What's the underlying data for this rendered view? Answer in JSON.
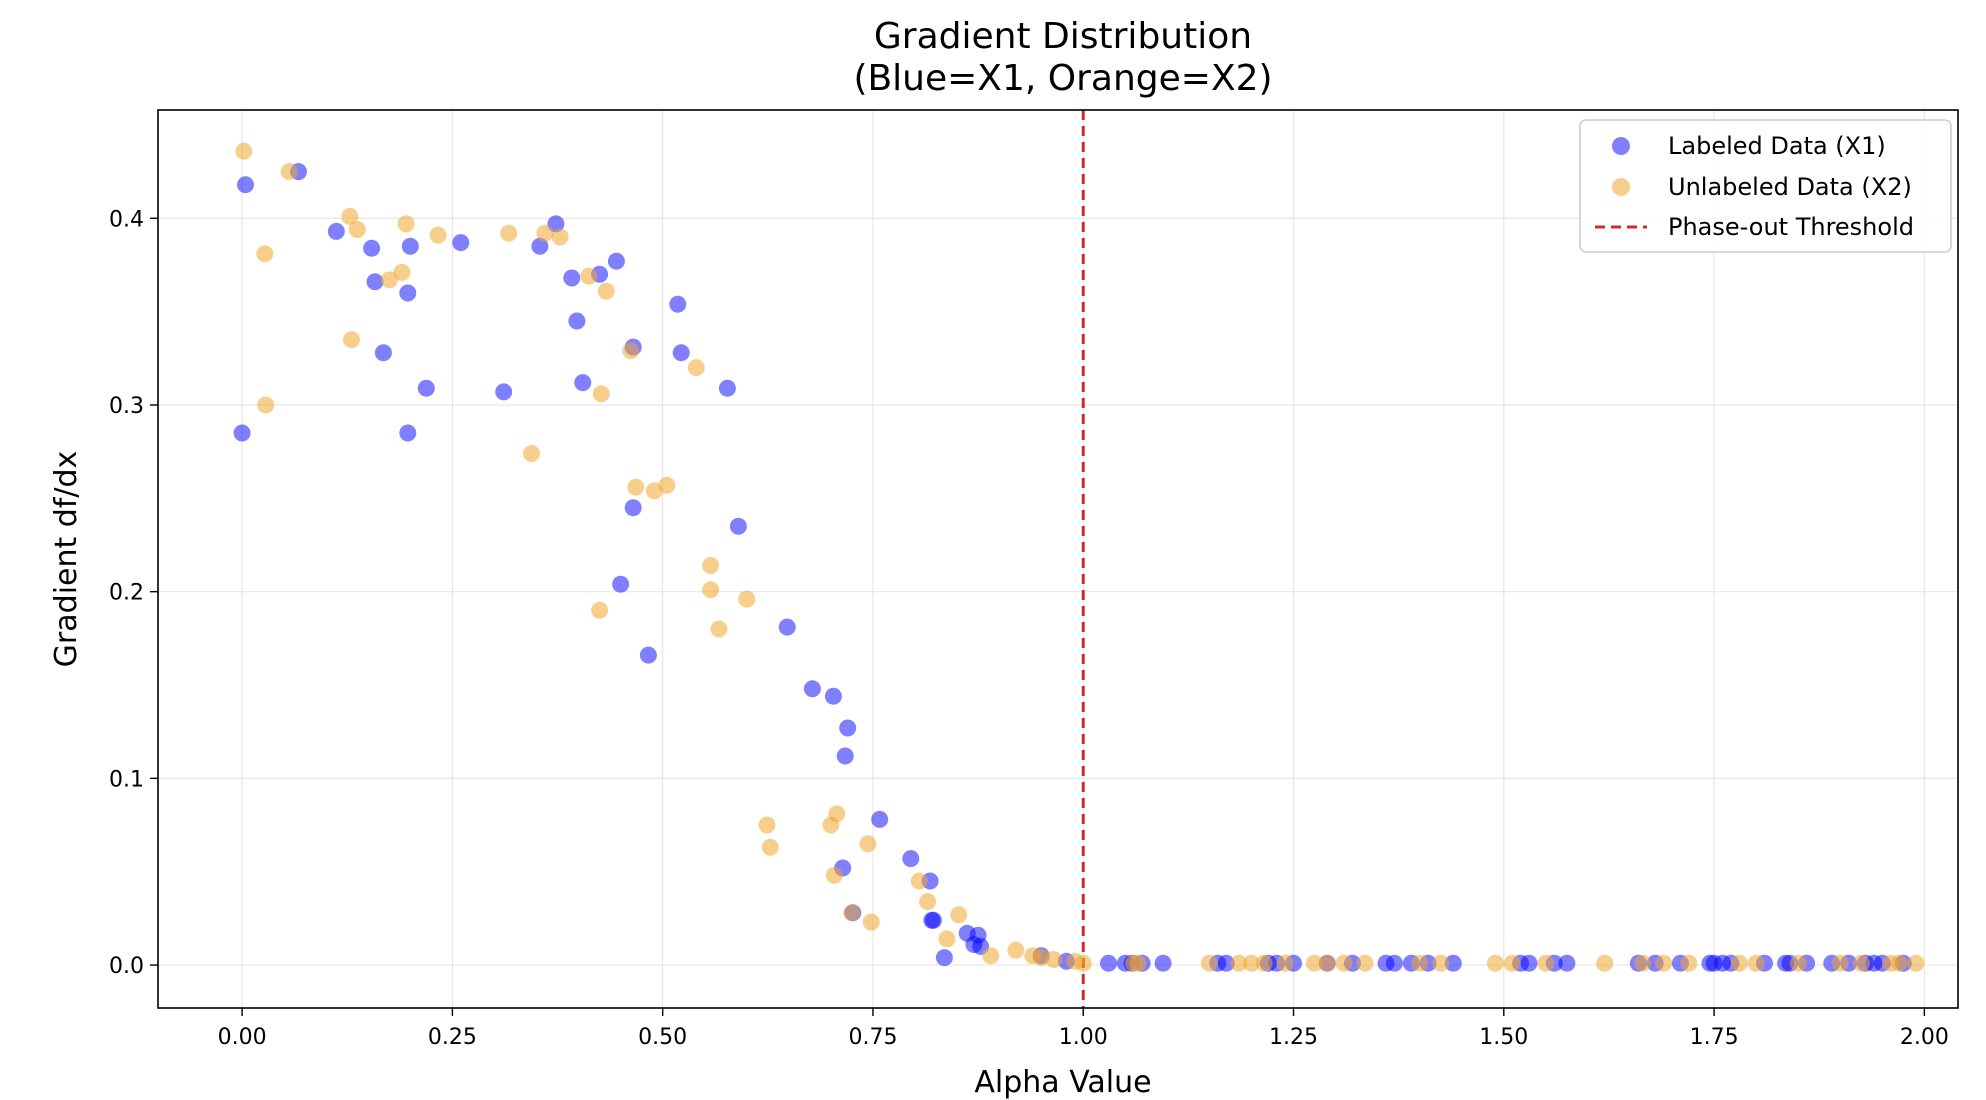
{
  "chart_data": {
    "type": "scatter",
    "title_line1": "Gradient Distribution",
    "title_line2": "(Blue=X1, Orange=X2)",
    "xlabel": "Alpha Value",
    "ylabel": "Gradient df/dx",
    "xlim": [
      -0.1,
      2.04
    ],
    "ylim": [
      -0.023,
      0.458
    ],
    "xticks": [
      0.0,
      0.25,
      0.5,
      0.75,
      1.0,
      1.25,
      1.5,
      1.75,
      2.0
    ],
    "xtick_labels": [
      "0.00",
      "0.25",
      "0.50",
      "0.75",
      "1.00",
      "1.25",
      "1.50",
      "1.75",
      "2.00"
    ],
    "yticks": [
      0.0,
      0.1,
      0.2,
      0.3,
      0.4
    ],
    "ytick_labels": [
      "0.0",
      "0.1",
      "0.2",
      "0.3",
      "0.4"
    ],
    "grid": true,
    "legend_position": "top-right",
    "threshold": {
      "x": 1.0,
      "label": "Phase-out Threshold",
      "color": "#d62728",
      "style": "dashed"
    },
    "series": [
      {
        "name": "Labeled Data (X1)",
        "color": "#0000ff",
        "opacity": 0.5,
        "points": [
          [
            0.0,
            0.285
          ],
          [
            0.004,
            0.418
          ],
          [
            0.067,
            0.425
          ],
          [
            0.112,
            0.393
          ],
          [
            0.154,
            0.384
          ],
          [
            0.158,
            0.366
          ],
          [
            0.168,
            0.328
          ],
          [
            0.197,
            0.285
          ],
          [
            0.197,
            0.36
          ],
          [
            0.2,
            0.385
          ],
          [
            0.219,
            0.309
          ],
          [
            0.26,
            0.387
          ],
          [
            0.311,
            0.307
          ],
          [
            0.354,
            0.385
          ],
          [
            0.373,
            0.397
          ],
          [
            0.392,
            0.368
          ],
          [
            0.398,
            0.345
          ],
          [
            0.405,
            0.312
          ],
          [
            0.425,
            0.37
          ],
          [
            0.445,
            0.377
          ],
          [
            0.45,
            0.204
          ],
          [
            0.465,
            0.331
          ],
          [
            0.465,
            0.245
          ],
          [
            0.483,
            0.166
          ],
          [
            0.518,
            0.354
          ],
          [
            0.522,
            0.328
          ],
          [
            0.577,
            0.309
          ],
          [
            0.59,
            0.235
          ],
          [
            0.648,
            0.181
          ],
          [
            0.678,
            0.148
          ],
          [
            0.703,
            0.144
          ],
          [
            0.714,
            0.052
          ],
          [
            0.717,
            0.112
          ],
          [
            0.72,
            0.127
          ],
          [
            0.726,
            0.028
          ],
          [
            0.758,
            0.078
          ],
          [
            0.795,
            0.057
          ],
          [
            0.818,
            0.045
          ],
          [
            0.82,
            0.024
          ],
          [
            0.822,
            0.024
          ],
          [
            0.835,
            0.004
          ],
          [
            0.862,
            0.017
          ],
          [
            0.87,
            0.011
          ],
          [
            0.875,
            0.016
          ],
          [
            0.878,
            0.01
          ],
          [
            0.95,
            0.005
          ],
          [
            0.98,
            0.002
          ],
          [
            1.03,
            0.001
          ],
          [
            1.05,
            0.001
          ],
          [
            1.058,
            0.001
          ],
          [
            1.07,
            0.001
          ],
          [
            1.095,
            0.001
          ],
          [
            1.16,
            0.001
          ],
          [
            1.17,
            0.001
          ],
          [
            1.22,
            0.001
          ],
          [
            1.23,
            0.001
          ],
          [
            1.25,
            0.001
          ],
          [
            1.29,
            0.001
          ],
          [
            1.32,
            0.001
          ],
          [
            1.36,
            0.001
          ],
          [
            1.37,
            0.001
          ],
          [
            1.39,
            0.001
          ],
          [
            1.41,
            0.001
          ],
          [
            1.44,
            0.001
          ],
          [
            1.52,
            0.001
          ],
          [
            1.53,
            0.001
          ],
          [
            1.56,
            0.001
          ],
          [
            1.575,
            0.001
          ],
          [
            1.66,
            0.001
          ],
          [
            1.68,
            0.001
          ],
          [
            1.71,
            0.001
          ],
          [
            1.745,
            0.001
          ],
          [
            1.75,
            0.001
          ],
          [
            1.76,
            0.001
          ],
          [
            1.77,
            0.001
          ],
          [
            1.81,
            0.001
          ],
          [
            1.835,
            0.001
          ],
          [
            1.84,
            0.001
          ],
          [
            1.86,
            0.001
          ],
          [
            1.89,
            0.001
          ],
          [
            1.91,
            0.001
          ],
          [
            1.93,
            0.001
          ],
          [
            1.94,
            0.001
          ],
          [
            1.95,
            0.001
          ],
          [
            1.975,
            0.001
          ]
        ]
      },
      {
        "name": "Unlabeled Data (X2)",
        "color": "#f0a830",
        "opacity": 0.55,
        "points": [
          [
            0.002,
            0.436
          ],
          [
            0.027,
            0.381
          ],
          [
            0.028,
            0.3
          ],
          [
            0.056,
            0.425
          ],
          [
            0.128,
            0.401
          ],
          [
            0.13,
            0.335
          ],
          [
            0.137,
            0.394
          ],
          [
            0.175,
            0.367
          ],
          [
            0.19,
            0.371
          ],
          [
            0.195,
            0.397
          ],
          [
            0.233,
            0.391
          ],
          [
            0.317,
            0.392
          ],
          [
            0.344,
            0.274
          ],
          [
            0.36,
            0.392
          ],
          [
            0.378,
            0.39
          ],
          [
            0.412,
            0.369
          ],
          [
            0.425,
            0.19
          ],
          [
            0.427,
            0.306
          ],
          [
            0.433,
            0.361
          ],
          [
            0.462,
            0.329
          ],
          [
            0.468,
            0.256
          ],
          [
            0.49,
            0.254
          ],
          [
            0.505,
            0.257
          ],
          [
            0.54,
            0.32
          ],
          [
            0.557,
            0.214
          ],
          [
            0.557,
            0.201
          ],
          [
            0.567,
            0.18
          ],
          [
            0.6,
            0.196
          ],
          [
            0.624,
            0.075
          ],
          [
            0.628,
            0.063
          ],
          [
            0.7,
            0.075
          ],
          [
            0.704,
            0.048
          ],
          [
            0.707,
            0.081
          ],
          [
            0.725,
            0.028
          ],
          [
            0.744,
            0.065
          ],
          [
            0.748,
            0.023
          ],
          [
            0.805,
            0.045
          ],
          [
            0.815,
            0.034
          ],
          [
            0.838,
            0.014
          ],
          [
            0.852,
            0.027
          ],
          [
            0.89,
            0.005
          ],
          [
            0.92,
            0.008
          ],
          [
            0.94,
            0.005
          ],
          [
            0.95,
            0.004
          ],
          [
            0.965,
            0.003
          ],
          [
            0.99,
            0.002
          ],
          [
            1.0,
            0.001
          ],
          [
            1.06,
            0.001
          ],
          [
            1.065,
            0.001
          ],
          [
            1.15,
            0.001
          ],
          [
            1.185,
            0.001
          ],
          [
            1.2,
            0.001
          ],
          [
            1.215,
            0.001
          ],
          [
            1.24,
            0.001
          ],
          [
            1.275,
            0.001
          ],
          [
            1.29,
            0.001
          ],
          [
            1.31,
            0.001
          ],
          [
            1.335,
            0.001
          ],
          [
            1.4,
            0.001
          ],
          [
            1.425,
            0.001
          ],
          [
            1.49,
            0.001
          ],
          [
            1.51,
            0.001
          ],
          [
            1.55,
            0.001
          ],
          [
            1.62,
            0.001
          ],
          [
            1.665,
            0.001
          ],
          [
            1.69,
            0.001
          ],
          [
            1.72,
            0.001
          ],
          [
            1.78,
            0.001
          ],
          [
            1.8,
            0.001
          ],
          [
            1.85,
            0.001
          ],
          [
            1.9,
            0.001
          ],
          [
            1.925,
            0.001
          ],
          [
            1.96,
            0.001
          ],
          [
            1.97,
            0.001
          ],
          [
            1.99,
            0.001
          ]
        ]
      }
    ]
  }
}
